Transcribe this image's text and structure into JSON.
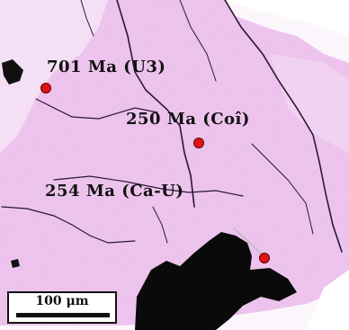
{
  "image": {
    "colors": {
      "mineral": "#f0c8f0",
      "void": "#0a0a0a",
      "spot": "#e01414"
    }
  },
  "annotations": [
    {
      "text": "701 Ma (U3)"
    },
    {
      "text": "250 Ma (Coî)"
    },
    {
      "text": "254 Ma (Ca-U)"
    }
  ],
  "scale_bar": {
    "label": "100 μm"
  }
}
